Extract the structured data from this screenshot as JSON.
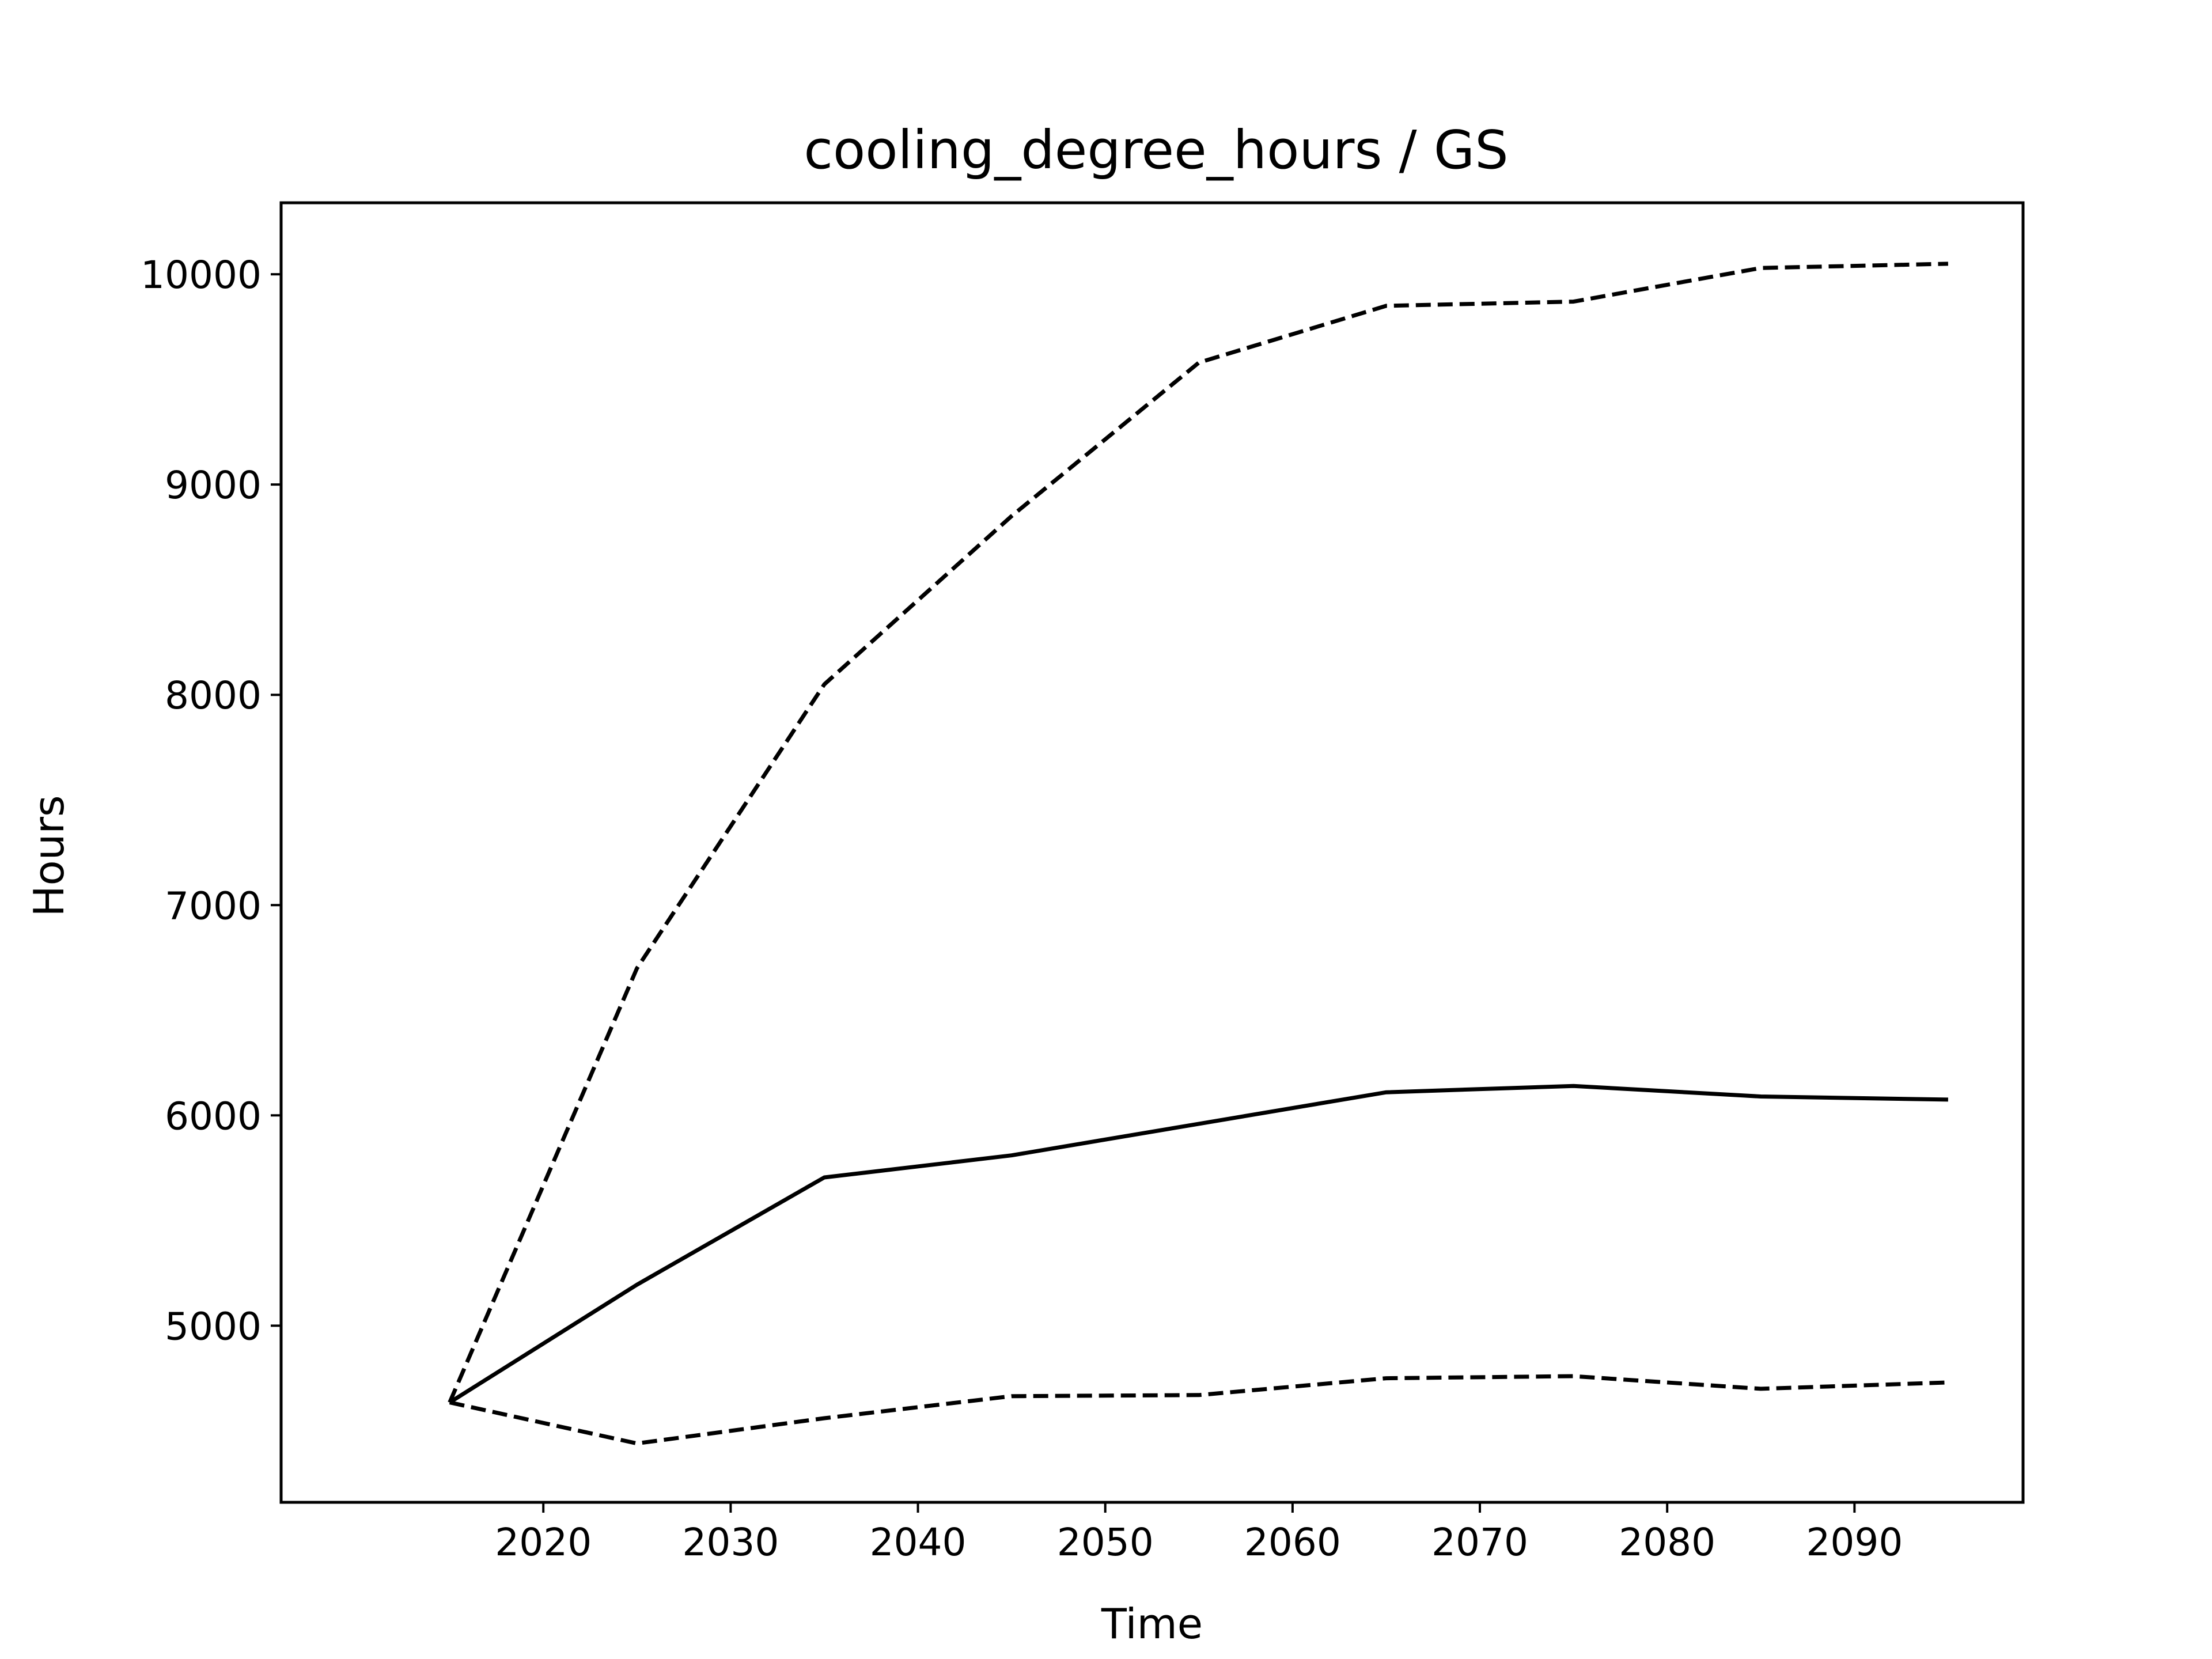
{
  "chart_data": {
    "type": "line",
    "title": "cooling_degree_hours / GS",
    "xlabel": "Time",
    "ylabel": "Hours",
    "x": [
      2015,
      2025,
      2035,
      2045,
      2055,
      2065,
      2075,
      2085,
      2095
    ],
    "xlim": [
      2006,
      2099
    ],
    "ylim": [
      4160,
      10340
    ],
    "xticks": [
      2020,
      2030,
      2040,
      2050,
      2060,
      2070,
      2080,
      2090
    ],
    "yticks": [
      5000,
      6000,
      7000,
      8000,
      9000,
      10000
    ],
    "grid": false,
    "series": [
      {
        "values": [
          4635,
          5195,
          5705,
          5810,
          5960,
          6110,
          6140,
          6090,
          6075
        ],
        "style": "solid",
        "color": "#000000"
      },
      {
        "values": [
          4635,
          6700,
          8050,
          8850,
          9580,
          9850,
          9870,
          10030,
          10050
        ],
        "style": "dashed",
        "color": "#000000"
      },
      {
        "values": [
          4635,
          4440,
          4560,
          4665,
          4670,
          4750,
          4760,
          4700,
          4730
        ],
        "style": "dashed",
        "color": "#000000"
      }
    ]
  }
}
